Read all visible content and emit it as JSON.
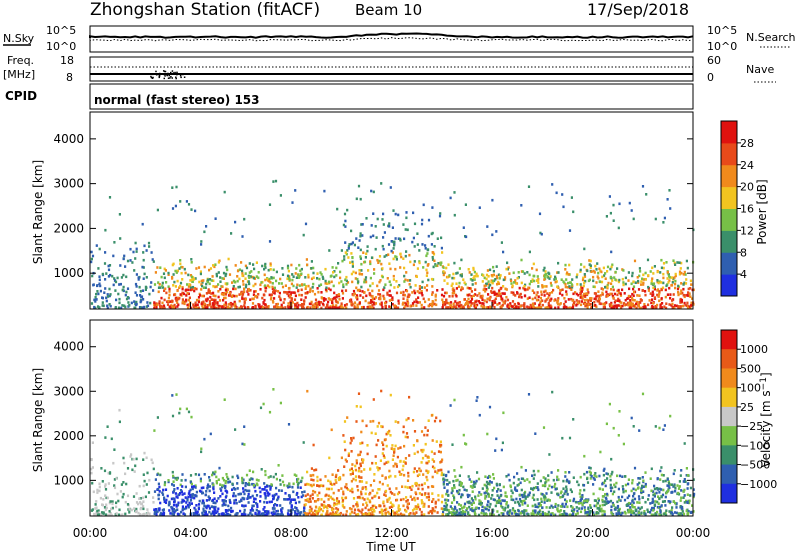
{
  "header": {
    "title": "Zhongshan Station (fitACF)",
    "beam": "Beam 10",
    "date": "17/Sep/2018"
  },
  "top_panels": {
    "nsky_label": "N.Sky",
    "nsky_ticks": [
      "10^5",
      "10^0"
    ],
    "nsearch_label": "N.Search",
    "nsearch_ticks": [
      "10^5",
      "10^0"
    ],
    "freq_label_1": "Freq.",
    "freq_label_2": "[MHz]",
    "freq_ticks": [
      "18",
      "8"
    ],
    "nave_label": "Nave",
    "nave_ticks": [
      "60",
      "0"
    ],
    "cpid_label": "CPID",
    "cpid_text": "normal (fast stereo) 153"
  },
  "colors": {
    "power_scale": [
      "#1f2fe0",
      "#2f5fb0",
      "#3a8f6a",
      "#77c047",
      "#f2c420",
      "#f08a1c",
      "#e84a1a",
      "#e0120f"
    ],
    "velocity_scale": [
      "#e0120f",
      "#e85a18",
      "#f08a1c",
      "#f2c420",
      "#c8c8c8",
      "#77c047",
      "#3a8f6a",
      "#2f5fb0",
      "#1f2fe0"
    ]
  },
  "chart_data": [
    {
      "type": "heatmap",
      "name": "power",
      "ylabel": "Slant Range [km]",
      "xlabel": "",
      "yticks": [
        "1000",
        "2000",
        "3000",
        "4000"
      ],
      "ylim": [
        200,
        4600
      ],
      "xlim": [
        0,
        24
      ],
      "colorbar_label": "Power [dB]",
      "colorbar_ticks": [
        "4",
        "8",
        "12",
        "16",
        "20",
        "24",
        "28"
      ],
      "grid": false
    },
    {
      "type": "heatmap",
      "name": "velocity",
      "ylabel": "Slant Range [km]",
      "xlabel": "Time UT",
      "xticks": [
        "00:00",
        "04:00",
        "08:00",
        "12:00",
        "16:00",
        "20:00",
        "00:00"
      ],
      "yticks": [
        "1000",
        "2000",
        "3000",
        "4000"
      ],
      "ylim": [
        200,
        4600
      ],
      "xlim": [
        0,
        24
      ],
      "colorbar_label": "Velocity [m s^-1]",
      "colorbar_ticks": [
        "1000",
        "500",
        "100",
        "25",
        "−25",
        "−100",
        "−500",
        "−1000"
      ],
      "grid": false
    }
  ]
}
